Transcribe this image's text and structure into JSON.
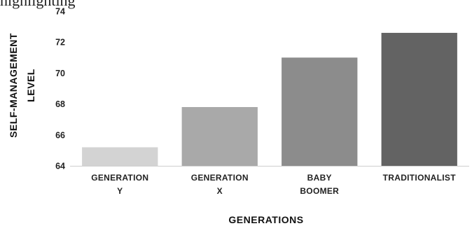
{
  "page": {
    "header_fragment": "highlighting"
  },
  "chart_data": {
    "type": "bar",
    "categories": [
      [
        "GENERATION",
        "Y"
      ],
      [
        "GENERATION",
        "X"
      ],
      [
        "BABY",
        "BOOMER"
      ],
      [
        "TRADITIONALIST"
      ]
    ],
    "values": [
      65.2,
      67.8,
      71.0,
      72.6
    ],
    "bar_colors": [
      "#d3d3d3",
      "#a9a9a9",
      "#8c8c8c",
      "#636363"
    ],
    "title": "",
    "xlabel": "GENERATIONS",
    "ylabel": [
      "SELF-MANAGEMENT",
      "LEVEL"
    ],
    "ylim": [
      64,
      74
    ],
    "yticks": [
      64,
      66,
      68,
      70,
      72,
      74
    ],
    "grid": false,
    "legend": "none"
  }
}
